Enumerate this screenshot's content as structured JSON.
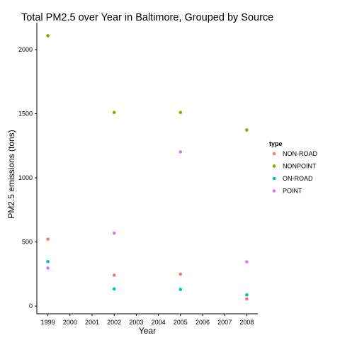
{
  "chart_data": {
    "type": "scatter",
    "title": "Total PM2.5 over Year in Baltimore, Grouped by Source",
    "xlabel": "Year",
    "ylabel": "PM2.5 emissions (tons)",
    "x_ticks": [
      1999,
      2000,
      2001,
      2002,
      2003,
      2004,
      2005,
      2006,
      2007,
      2008
    ],
    "y_ticks": [
      0,
      500,
      1000,
      1500,
      2000
    ],
    "xlim": [
      1998.5,
      2008.5
    ],
    "ylim": [
      -60,
      2210
    ],
    "grid": false,
    "legend": {
      "title": "type",
      "placement": "right"
    },
    "series": [
      {
        "name": "NON-ROAD",
        "color": "#F8766D",
        "points": [
          [
            1999,
            522
          ],
          [
            2002,
            241
          ],
          [
            2005,
            249
          ],
          [
            2008,
            55
          ]
        ]
      },
      {
        "name": "NONPOINT",
        "color": "#7CAE00",
        "points": [
          [
            1999,
            2108
          ],
          [
            2002,
            1510
          ],
          [
            2005,
            1510
          ],
          [
            2008,
            1373
          ]
        ]
      },
      {
        "name": "ON-ROAD",
        "color": "#00BFC4",
        "points": [
          [
            1999,
            347
          ],
          [
            2002,
            134
          ],
          [
            2005,
            130
          ],
          [
            2008,
            88
          ]
        ]
      },
      {
        "name": "POINT",
        "color": "#C77CFF",
        "points": [
          [
            1999,
            297
          ],
          [
            2002,
            569
          ],
          [
            2005,
            1202
          ],
          [
            2008,
            345
          ]
        ]
      }
    ]
  }
}
